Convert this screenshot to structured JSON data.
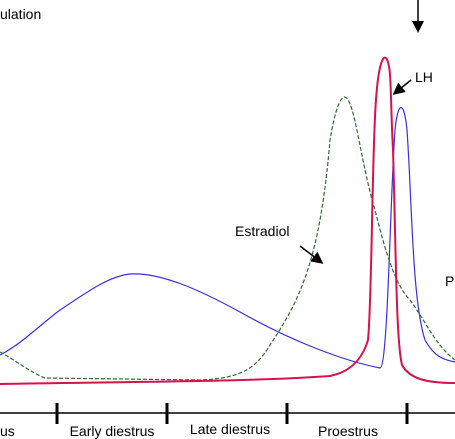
{
  "labels": {
    "ovulation": "ulation",
    "lh": "LH",
    "estradiol": "Estradiol",
    "progesterone": "P"
  },
  "phases": [
    "us",
    "Early diestrus",
    "Late diestrus",
    "Proestrus"
  ]
}
